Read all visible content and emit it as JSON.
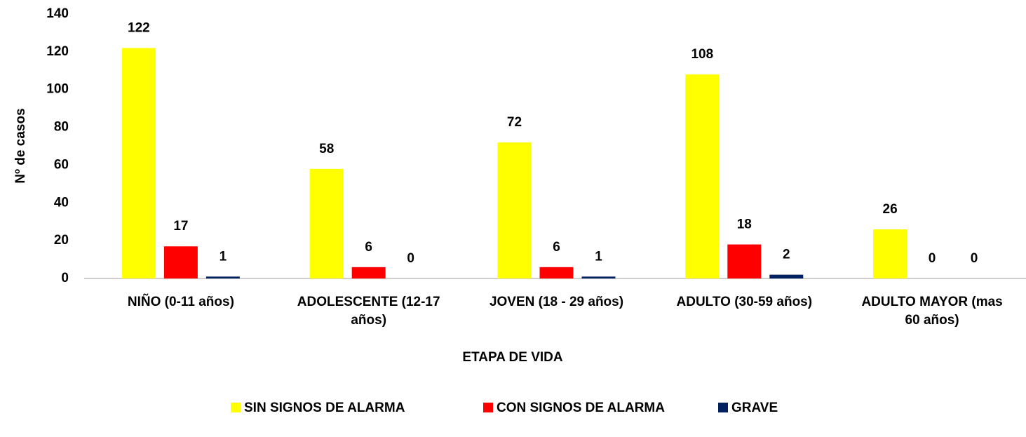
{
  "chart_data": {
    "type": "bar",
    "x_label": "ETAPA DE VIDA",
    "y_label": "Nº de casos",
    "categories": [
      "NIÑO (0-11 años)",
      "ADOLESCENTE (12-17\naños)",
      "JOVEN (18 - 29 años)",
      "ADULTO (30-59 años)",
      "ADULTO MAYOR (mas\n60 años)"
    ],
    "series": [
      {
        "name": "SIN SIGNOS DE ALARMA",
        "color": "#ffff00",
        "values": [
          122,
          58,
          72,
          108,
          26
        ]
      },
      {
        "name": "CON SIGNOS DE ALARMA",
        "color": "#ff0000",
        "values": [
          17,
          6,
          6,
          18,
          0
        ]
      },
      {
        "name": "GRAVE",
        "color": "#002060",
        "values": [
          1,
          0,
          1,
          2,
          0
        ]
      }
    ],
    "ylim": [
      0,
      140
    ],
    "yticks": [
      0,
      20,
      40,
      60,
      80,
      100,
      120,
      140
    ],
    "grid": false,
    "legend": "bottom"
  }
}
